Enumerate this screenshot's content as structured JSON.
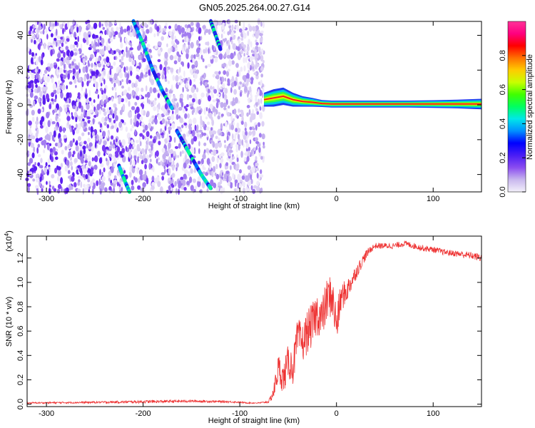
{
  "title": "GN05.2025.264.00.27.G14",
  "chart_data": [
    {
      "type": "heatmap",
      "xlabel": "Height of straight line (km)",
      "ylabel": "Frequency (Hz)",
      "xlim": [
        -320,
        150
      ],
      "ylim": [
        -50,
        48
      ],
      "x_ticks": [
        -300,
        -200,
        -100,
        0,
        100
      ],
      "y_ticks": [
        -40,
        -20,
        0,
        20,
        40
      ],
      "noise_region_x": [
        -320,
        -75
      ],
      "streaks": [
        {
          "points": [
            [
              -210,
              48
            ],
            [
              -200,
              35
            ],
            [
              -190,
              20
            ],
            [
              -180,
              8
            ],
            [
              -170,
              -2
            ]
          ]
        },
        {
          "points": [
            [
              -165,
              -15
            ],
            [
              -158,
              -22
            ],
            [
              -150,
              -30
            ],
            [
              -140,
              -40
            ],
            [
              -130,
              -48
            ]
          ]
        },
        {
          "points": [
            [
              -130,
              48
            ],
            [
              -125,
              40
            ],
            [
              -120,
              32
            ]
          ]
        },
        {
          "points": [
            [
              -225,
              -35
            ],
            [
              -218,
              -45
            ],
            [
              -214,
              -50
            ]
          ]
        }
      ],
      "trace": {
        "x": [
          -75,
          -65,
          -55,
          -45,
          -35,
          -25,
          -15,
          -5,
          0,
          25,
          50,
          75,
          100,
          125,
          150
        ],
        "y": [
          3,
          4,
          5,
          3,
          2,
          1.5,
          0.8,
          0.5,
          0.5,
          0.5,
          0.5,
          0.5,
          0.5,
          0.5,
          0.5
        ],
        "halfwidth": [
          4,
          5,
          5,
          4,
          3,
          2.5,
          2,
          2,
          2,
          2,
          2,
          2,
          2.2,
          2.5,
          3
        ]
      },
      "colorbar": {
        "label": "Normalized spectral amplitude",
        "ticks": [
          0.0,
          0.2,
          0.4,
          0.6,
          0.8
        ],
        "range": [
          0,
          1
        ],
        "colors": [
          "#f3f0fa",
          "#c9b8ee",
          "#8a4cf0",
          "#4a1df5",
          "#0000ff",
          "#0090ff",
          "#00e8e8",
          "#00ff60",
          "#40ff00",
          "#c8ff00",
          "#ffcc00",
          "#ff7000",
          "#ff0000",
          "#ff0080",
          "#ff3399"
        ]
      }
    },
    {
      "type": "line",
      "xlabel": "Height of straight line (km)",
      "ylabel": "SNR (10 * v/v)",
      "y_multiplier": "(x10",
      "y_multiplier_exp": "4",
      "y_multiplier_close": ")",
      "xlim": [
        -320,
        150
      ],
      "ylim": [
        -0.02,
        1.38
      ],
      "x_ticks": [
        -300,
        -200,
        -100,
        0,
        100
      ],
      "y_ticks": [
        0.0,
        0.2,
        0.4,
        0.6,
        0.8,
        1.0,
        1.2
      ],
      "line_color": "#ee3333",
      "series": [
        {
          "x": [
            -320,
            -250,
            -200,
            -150,
            -110,
            -100,
            -90,
            -80,
            -70,
            -65,
            -60,
            -55,
            -50,
            -45,
            -40,
            -35,
            -30,
            -25,
            -20,
            -15,
            -10,
            -5,
            0,
            5,
            10,
            15,
            20,
            25,
            30,
            35,
            40,
            50,
            60,
            70,
            80,
            90,
            100,
            110,
            120,
            130,
            140,
            150
          ],
          "y": [
            0.01,
            0.015,
            0.02,
            0.025,
            0.02,
            0.015,
            0.01,
            0.01,
            0.02,
            0.1,
            0.3,
            0.2,
            0.35,
            0.3,
            0.55,
            0.5,
            0.6,
            0.65,
            0.75,
            0.7,
            0.85,
            0.9,
            0.65,
            0.88,
            0.92,
            1.0,
            1.08,
            1.15,
            1.22,
            1.27,
            1.3,
            1.3,
            1.3,
            1.32,
            1.3,
            1.28,
            1.27,
            1.25,
            1.24,
            1.23,
            1.22,
            1.2
          ],
          "noise": [
            0.006,
            0.008,
            0.012,
            0.01,
            0.008,
            0.006,
            0.005,
            0.005,
            0.01,
            0.06,
            0.12,
            0.12,
            0.14,
            0.14,
            0.16,
            0.16,
            0.18,
            0.18,
            0.18,
            0.18,
            0.18,
            0.18,
            0.18,
            0.12,
            0.1,
            0.08,
            0.06,
            0.05,
            0.04,
            0.03,
            0.025,
            0.025,
            0.025,
            0.025,
            0.025,
            0.025,
            0.025,
            0.025,
            0.025,
            0.03,
            0.03,
            0.03
          ]
        }
      ]
    }
  ]
}
